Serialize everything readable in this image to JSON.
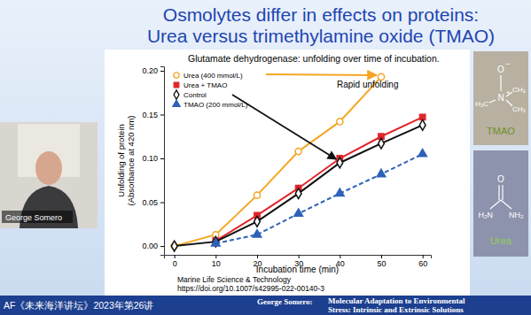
{
  "slide": {
    "title": [
      "Osmolytes differ in effects on proteins:",
      "Urea versus trimethylamine oxide (TMAO)"
    ],
    "speaker": "George Somero",
    "citation": [
      "Marine Life Science & Technology",
      "https://doi.org/10.1007/s42995-022-00140-3"
    ],
    "banner": {
      "series": "AF《未来海洋讲坛》2023年第26讲",
      "lecturer": "George Somero:",
      "topic": [
        "Molecular Adaptation to Environmental",
        "Stress: Intrinsic and Extrinsic Solutions"
      ]
    },
    "molecules": [
      {
        "name": "TMAO",
        "atoms": [
          "O",
          "−",
          "N",
          "+",
          "H₃C",
          "CH₃",
          "CH₃"
        ]
      },
      {
        "name": "Urea",
        "atoms": [
          "O",
          "H₂N",
          "NH₂"
        ]
      }
    ]
  },
  "chart_data": {
    "type": "line",
    "title": "Glutamate dehydrogenase: unfolding over time of incubation.",
    "x_label": "Incubation time (min)",
    "y_label": [
      "Unfolding of protein",
      "(Absorbance at 420 nm)"
    ],
    "annotations": [
      "Rapid unfolding"
    ],
    "x": [
      0,
      10,
      20,
      30,
      40,
      50,
      60
    ],
    "series": [
      {
        "name": "Urea (400 mmol/L)",
        "color": "#f5a623",
        "marker": "circle-open",
        "line_style": "solid",
        "values": [
          0,
          0.013,
          0.058,
          0.108,
          0.142,
          0.193,
          null
        ]
      },
      {
        "name": "Urea + TMAO",
        "color": "#e0262b",
        "marker": "square",
        "line_style": "solid",
        "values": [
          null,
          0.006,
          0.035,
          0.066,
          0.1,
          0.125,
          0.147
        ]
      },
      {
        "name": "Control",
        "color": "#111111",
        "marker": "diamond-open",
        "line_style": "solid",
        "values": [
          0,
          0.005,
          0.028,
          0.06,
          0.095,
          0.117,
          0.138
        ]
      },
      {
        "name": "TMAO (200 mmol/L)",
        "color": "#2d62b8",
        "marker": "triangle",
        "line_style": "dashed",
        "values": [
          null,
          0.003,
          0.013,
          0.037,
          0.06,
          0.082,
          0.105
        ]
      }
    ],
    "xlim": [
      -2.5,
      62
    ],
    "ylim": [
      -0.01,
      0.205
    ],
    "xticks": [
      0,
      10,
      20,
      30,
      40,
      50,
      60
    ],
    "yticks": [
      {
        "value": 0,
        "label": "0.00"
      },
      {
        "value": 0.05,
        "label": "0.05"
      },
      {
        "value": 0.1,
        "label": "0.10"
      },
      {
        "value": 0.15,
        "label": "0.15"
      },
      {
        "value": 0.2,
        "label": "0.20"
      }
    ],
    "grid": false,
    "legend": "top-left"
  }
}
